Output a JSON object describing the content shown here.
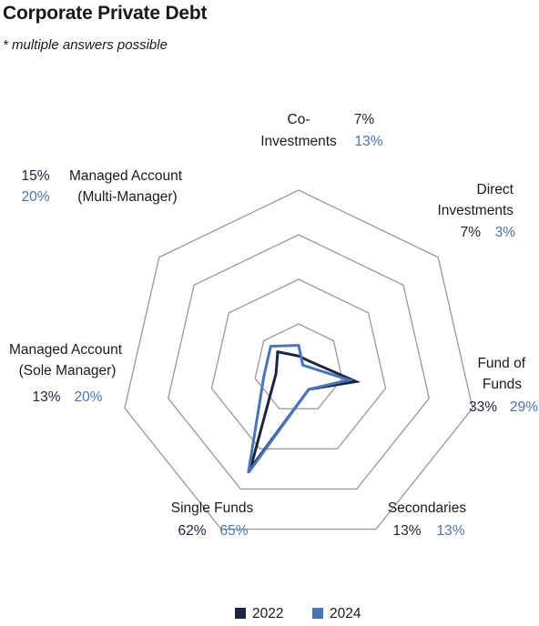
{
  "title": "Corporate Private Debt",
  "subtitle": "* multiple answers possible",
  "colors": {
    "2022": "#1b2540",
    "2024": "#4a74b4",
    "grid": "#9e9e9e"
  },
  "chart_data": {
    "type": "radar",
    "title": "Corporate Private Debt",
    "subtitle": "* multiple answers possible",
    "axes": [
      "Co-Investments",
      "Direct Investments",
      "Fund of Funds",
      "Secondaries",
      "Single Funds",
      "Managed Account (Sole Manager)",
      "Managed Account (Multi-Manager)"
    ],
    "axis_label_lines": [
      [
        "Co-",
        "Investments"
      ],
      [
        "Direct",
        "Investments"
      ],
      [
        "Fund of",
        "Funds"
      ],
      [
        "Secondaries"
      ],
      [
        "Single Funds"
      ],
      [
        "Managed Account",
        "(Sole Manager)"
      ],
      [
        "Managed Account",
        "(Multi-Manager)"
      ]
    ],
    "series": [
      {
        "name": "2022",
        "values": [
          7,
          7,
          33,
          13,
          62,
          13,
          15
        ],
        "labels": [
          "7%",
          "7%",
          "33%",
          "13%",
          "62%",
          "13%",
          "15%"
        ]
      },
      {
        "name": "2024",
        "values": [
          13,
          3,
          29,
          13,
          65,
          20,
          20
        ],
        "labels": [
          "13%",
          "3%",
          "29%",
          "13%",
          "65%",
          "20%",
          "20%"
        ]
      }
    ],
    "rlim": [
      0,
      100
    ],
    "grid_rings": 4,
    "legend": "bottom"
  }
}
